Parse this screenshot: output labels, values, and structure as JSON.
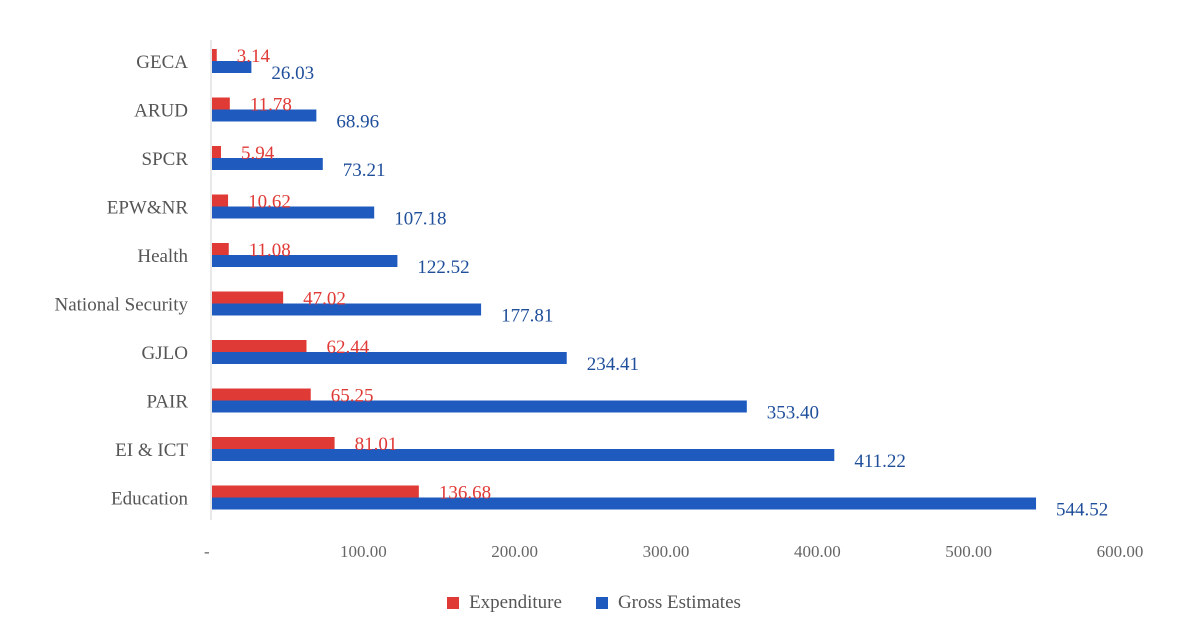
{
  "chart_data": {
    "type": "bar",
    "orientation": "horizontal",
    "categories": [
      "GECA",
      "ARUD",
      "SPCR",
      "EPW&NR",
      "Health",
      "National Security",
      "GJLO",
      "PAIR",
      "EI & ICT",
      "Education"
    ],
    "series": [
      {
        "name": "Expenditure",
        "color": "#e03a36",
        "values": [
          3.14,
          11.78,
          5.94,
          10.62,
          11.08,
          47.02,
          62.44,
          65.25,
          81.01,
          136.68
        ],
        "labels": [
          "3.14",
          "11.78",
          "5.94",
          "10.62",
          "11.08",
          "47.02",
          "62.44",
          "65.25",
          "81.01",
          "136.68"
        ]
      },
      {
        "name": "Gross Estimates",
        "color": "#1f5bbf",
        "values": [
          26.03,
          68.96,
          73.21,
          107.18,
          122.52,
          177.81,
          234.41,
          353.4,
          411.22,
          544.52
        ],
        "labels": [
          "26.03",
          "68.96",
          "73.21",
          "107.18",
          "122.52",
          "177.81",
          "234.41",
          "353.40",
          "411.22",
          "544.52"
        ]
      }
    ],
    "xlim": [
      0,
      600
    ],
    "xticks": [
      0,
      100,
      200,
      300,
      400,
      500,
      600
    ],
    "xtick_labels": [
      "-",
      "100.00",
      "200.00",
      "300.00",
      "400.00",
      "500.00",
      "600.00"
    ],
    "title": "",
    "xlabel": "",
    "ylabel": "",
    "grid": false,
    "legend_position": "bottom-center"
  },
  "legend": [
    {
      "label": "Expenditure",
      "color": "#e03a36"
    },
    {
      "label": "Gross Estimates",
      "color": "#1f5bbf"
    }
  ]
}
